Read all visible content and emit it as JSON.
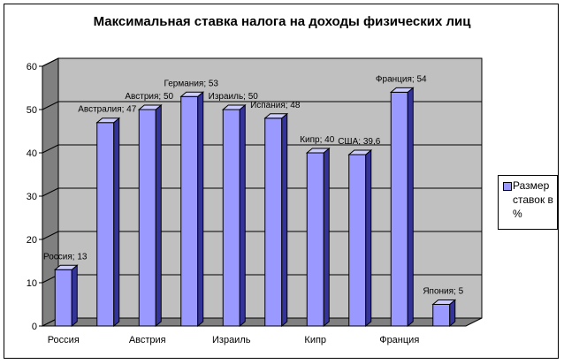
{
  "chart_data": {
    "type": "bar",
    "title": "Максимальная ставка налога на доходы физических лиц",
    "categories": [
      "Россия",
      "Австралия",
      "Австрия",
      "Германия",
      "Израиль",
      "Испания",
      "Кипр",
      "США",
      "Франция",
      "Япония"
    ],
    "x_tick_labels": [
      "Россия",
      "",
      "Австрия",
      "",
      "Израиль",
      "",
      "Кипр",
      "",
      "Франция",
      ""
    ],
    "data_labels": [
      "Россия; 13",
      "Австралия; 47",
      "Австрия; 50",
      "Германия; 53",
      "Израиль; 50",
      "Испания; 48",
      "Кипр; 40",
      "США; 39,6",
      "Франция; 54",
      "Япония; 5"
    ],
    "series": [
      {
        "name": "Размер ставок в %",
        "values": [
          13,
          47,
          50,
          53,
          50,
          48,
          40,
          39.6,
          54,
          5
        ]
      }
    ],
    "y_ticks": [
      "0",
      "10",
      "20",
      "30",
      "40",
      "50",
      "60"
    ],
    "ylim": [
      0,
      60
    ],
    "grid": true,
    "three_d": true,
    "legend_position": "right",
    "bar_color": "#9999ff",
    "bar_side_color": "#333399",
    "bar_top_color": "#ccccff",
    "wall_color": "#c0c0c0"
  }
}
